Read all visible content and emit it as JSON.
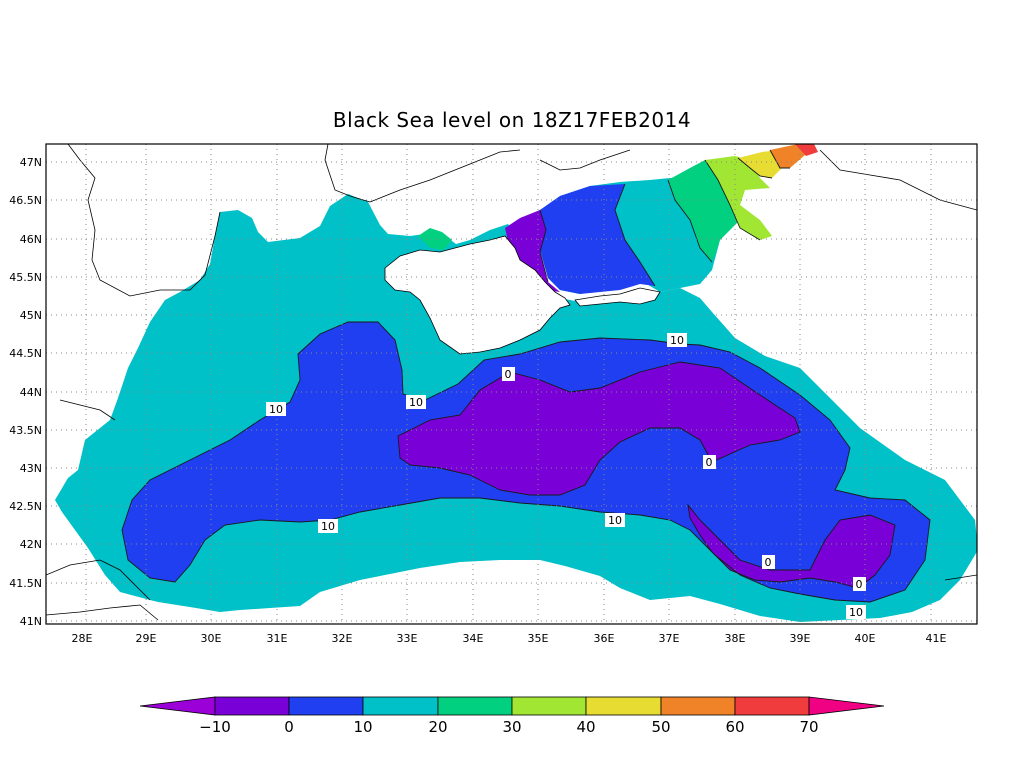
{
  "title": "Black Sea level on 18Z17FEB2014",
  "map": {
    "lon_labels": [
      "28E",
      "29E",
      "30E",
      "31E",
      "32E",
      "33E",
      "34E",
      "35E",
      "36E",
      "37E",
      "38E",
      "39E",
      "40E",
      "41E"
    ],
    "lat_labels": [
      "47N",
      "46.5N",
      "46N",
      "45.5N",
      "45N",
      "44.5N",
      "44N",
      "43.5N",
      "43N",
      "42.5N",
      "42N",
      "41.5N",
      "41N"
    ],
    "contour_labels": [
      "10",
      "10",
      "10",
      "10",
      "10",
      "10",
      "0",
      "0",
      "0",
      "0"
    ]
  },
  "colorbar": {
    "labels": [
      "−10",
      "0",
      "10",
      "20",
      "30",
      "40",
      "50",
      "60",
      "70"
    ],
    "colors": [
      "#9b00d8",
      "#7a00d8",
      "#1f3ff0",
      "#00c0c8",
      "#00d080",
      "#a0e632",
      "#e6dc32",
      "#f08228",
      "#f03c3c",
      "#f00082"
    ]
  }
}
